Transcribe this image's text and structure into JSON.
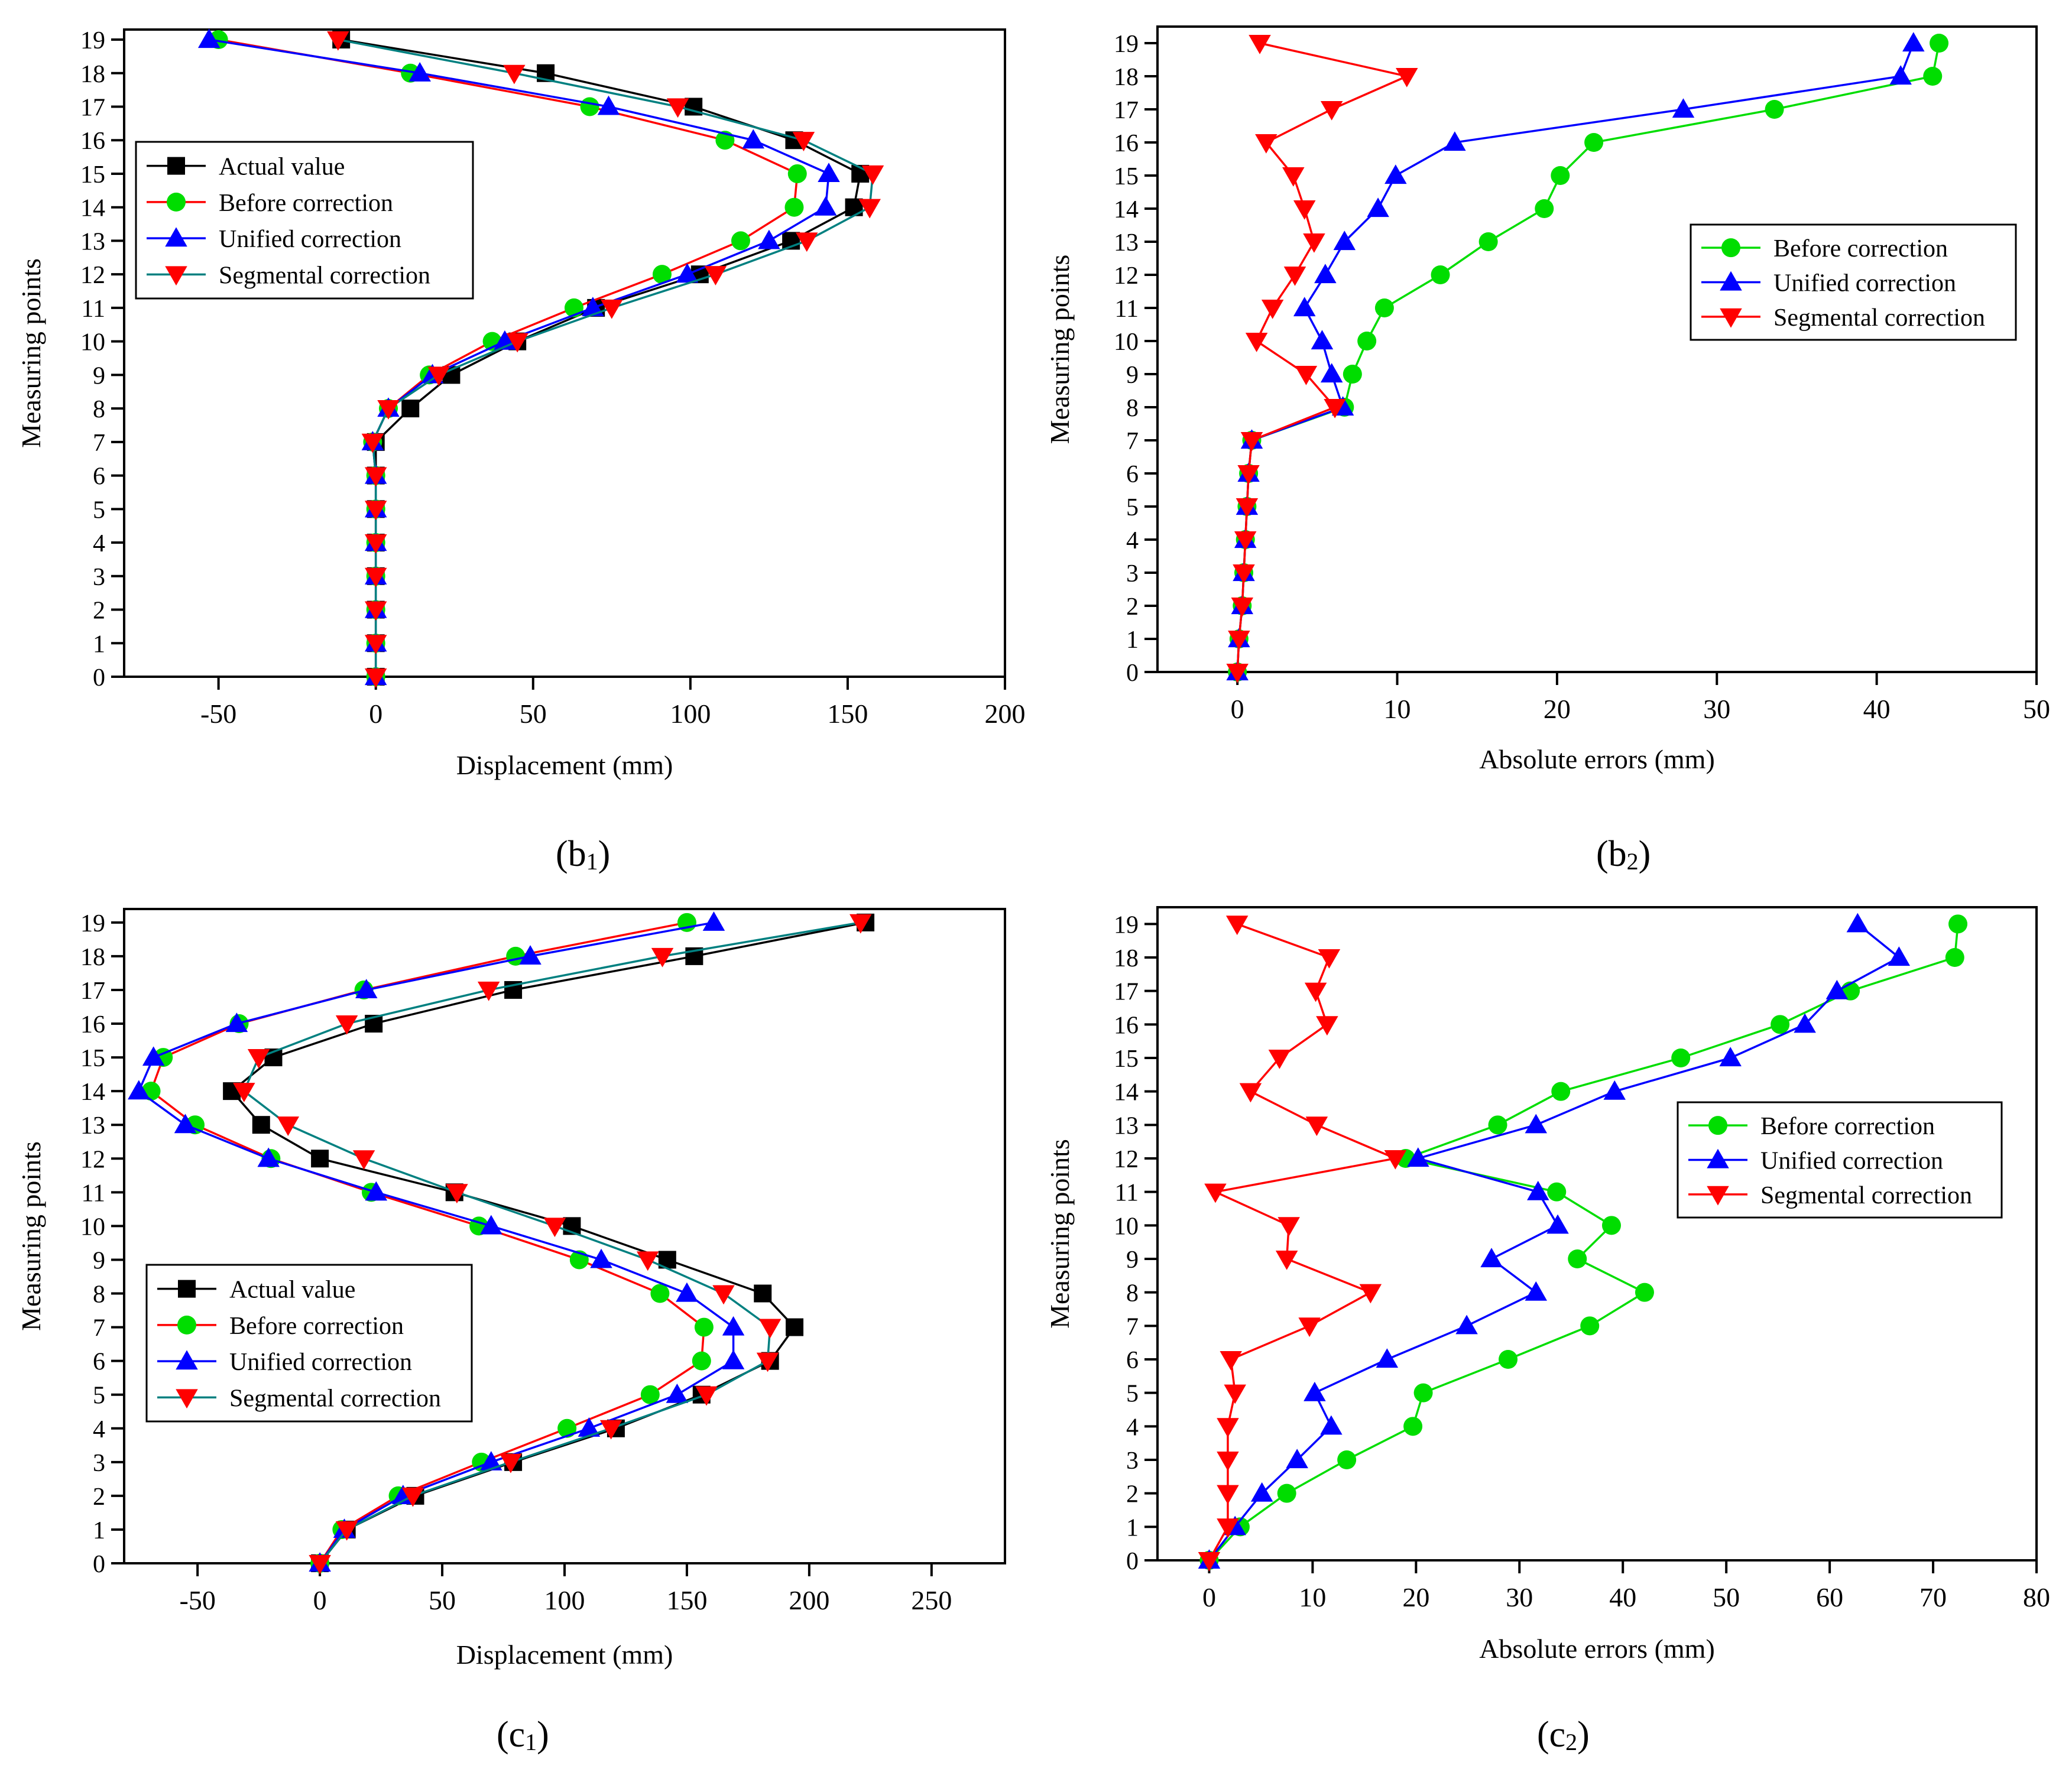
{
  "colors": {
    "actual": "#000000",
    "before": "#00dd00",
    "before_line_b1": "#ff0000",
    "before_line_c1": "#ff0000",
    "unified": "#0000ff",
    "segmental": "#ff0000",
    "segmental_line": "#008080"
  },
  "chart_data": [
    {
      "id": "b1",
      "type": "line",
      "caption_main": "(b",
      "caption_sub": "1",
      "caption_end": ")",
      "xlabel": "Displacement (mm)",
      "ylabel": "Measuring points",
      "xlim": [
        -80,
        200
      ],
      "ylim": [
        0,
        19.3
      ],
      "xticks": [
        -50,
        0,
        50,
        100,
        150,
        200
      ],
      "yticks": [
        0,
        1,
        2,
        3,
        4,
        5,
        6,
        7,
        8,
        9,
        10,
        11,
        12,
        13,
        14,
        15,
        16,
        17,
        18,
        19
      ],
      "legend_position": "upper-left",
      "series": [
        {
          "name": "Actual value",
          "key": "actual",
          "marker": "square",
          "y": [
            0,
            1,
            2,
            3,
            4,
            5,
            6,
            7,
            8,
            9,
            10,
            11,
            12,
            13,
            14,
            15,
            16,
            17,
            18,
            19
          ],
          "x": [
            0,
            0,
            0,
            0,
            0,
            0,
            0,
            0,
            11,
            24,
            45,
            70,
            103,
            132,
            152,
            154,
            133,
            101,
            54,
            -11
          ]
        },
        {
          "name": "Before correction",
          "key": "before",
          "marker": "circle",
          "y": [
            0,
            1,
            2,
            3,
            4,
            5,
            6,
            7,
            8,
            9,
            10,
            11,
            12,
            13,
            14,
            15,
            16,
            17,
            18,
            19
          ],
          "x": [
            0,
            0,
            0,
            0,
            0,
            0,
            0,
            -1,
            4,
            17,
            37,
            63,
            91,
            116,
            133,
            134,
            111,
            68,
            11,
            -50
          ]
        },
        {
          "name": "Unified correction",
          "key": "unified",
          "marker": "triangle-up",
          "y": [
            0,
            1,
            2,
            3,
            4,
            5,
            6,
            7,
            8,
            9,
            10,
            11,
            12,
            13,
            14,
            15,
            16,
            17,
            18,
            19
          ],
          "x": [
            0,
            0,
            0,
            0,
            0,
            0,
            0,
            -1,
            4,
            18,
            41,
            69,
            99,
            125,
            143,
            144,
            120,
            74,
            14,
            -53
          ]
        },
        {
          "name": "Segmental correction",
          "key": "segmental",
          "marker": "triangle-down",
          "y": [
            0,
            1,
            2,
            3,
            4,
            5,
            6,
            7,
            8,
            9,
            10,
            11,
            12,
            13,
            14,
            15,
            16,
            17,
            18,
            19
          ],
          "x": [
            0,
            0,
            0,
            0,
            0,
            0,
            0,
            -1,
            4,
            20,
            45,
            75,
            108,
            137,
            157,
            158,
            136,
            96,
            44,
            -12
          ]
        }
      ]
    },
    {
      "id": "b2",
      "type": "line",
      "caption_main": "(b",
      "caption_sub": "2",
      "caption_end": ")",
      "xlabel": "Absolute  errors (mm)",
      "ylabel": "Measuring points",
      "xlim": [
        -5,
        50
      ],
      "ylim": [
        0,
        19.5
      ],
      "xticks": [
        0,
        10,
        20,
        30,
        40,
        50
      ],
      "yticks": [
        0,
        1,
        2,
        3,
        4,
        5,
        6,
        7,
        8,
        9,
        10,
        11,
        12,
        13,
        14,
        15,
        16,
        17,
        18,
        19
      ],
      "legend_position": "upper-right",
      "series": [
        {
          "name": "Before correction",
          "key": "before",
          "marker": "circle",
          "y": [
            0,
            1,
            2,
            3,
            4,
            5,
            6,
            7,
            8,
            9,
            10,
            11,
            12,
            13,
            14,
            15,
            16,
            17,
            18,
            19
          ],
          "x": [
            0,
            0.1,
            0.3,
            0.4,
            0.5,
            0.6,
            0.7,
            0.9,
            6.7,
            7.2,
            8.1,
            9.2,
            12.7,
            15.7,
            19.2,
            20.2,
            22.3,
            33.6,
            43.5,
            43.9
          ]
        },
        {
          "name": "Unified correction",
          "key": "unified",
          "marker": "triangle-up",
          "y": [
            0,
            1,
            2,
            3,
            4,
            5,
            6,
            7,
            8,
            9,
            10,
            11,
            12,
            13,
            14,
            15,
            16,
            17,
            18,
            19
          ],
          "x": [
            0,
            0.1,
            0.3,
            0.4,
            0.5,
            0.6,
            0.7,
            0.9,
            6.6,
            5.9,
            5.3,
            4.2,
            5.5,
            6.7,
            8.8,
            9.9,
            13.6,
            27.9,
            41.5,
            42.3
          ]
        },
        {
          "name": "Segmental correction",
          "key": "segmental",
          "marker": "triangle-down",
          "y": [
            0,
            1,
            2,
            3,
            4,
            5,
            6,
            7,
            8,
            9,
            10,
            11,
            12,
            13,
            14,
            15,
            16,
            17,
            18,
            19
          ],
          "x": [
            0,
            0.1,
            0.3,
            0.4,
            0.5,
            0.6,
            0.7,
            0.9,
            6.1,
            4.3,
            1.2,
            2.2,
            3.6,
            4.8,
            4.2,
            3.5,
            1.8,
            5.9,
            10.6,
            1.4
          ]
        }
      ]
    },
    {
      "id": "c1",
      "type": "line",
      "caption_main": "(c",
      "caption_sub": "1",
      "caption_end": ")",
      "xlabel": "Displacement (mm)",
      "ylabel": "Measuring points",
      "xlim": [
        -80,
        280
      ],
      "ylim": [
        0,
        19.4
      ],
      "xticks": [
        -50,
        0,
        50,
        100,
        150,
        200,
        250
      ],
      "yticks": [
        0,
        1,
        2,
        3,
        4,
        5,
        6,
        7,
        8,
        9,
        10,
        11,
        12,
        13,
        14,
        15,
        16,
        17,
        18,
        19
      ],
      "legend_position": "lower-left",
      "series": [
        {
          "name": "Actual value",
          "key": "actual",
          "marker": "square",
          "y": [
            0,
            1,
            2,
            3,
            4,
            5,
            6,
            7,
            8,
            9,
            10,
            11,
            12,
            13,
            14,
            15,
            16,
            17,
            18,
            19
          ],
          "x": [
            0,
            11,
            39,
            79,
            121,
            156,
            184,
            194,
            181,
            142,
            103,
            55,
            0,
            -24,
            -36,
            -19,
            22,
            79,
            153,
            223
          ]
        },
        {
          "name": "Before correction",
          "key": "before",
          "marker": "circle",
          "y": [
            0,
            1,
            2,
            3,
            4,
            5,
            6,
            7,
            8,
            9,
            10,
            11,
            12,
            13,
            14,
            15,
            16,
            17,
            18,
            19
          ],
          "x": [
            0,
            9,
            32,
            66,
            101,
            135,
            156,
            157,
            139,
            106,
            65,
            21,
            -20,
            -51,
            -69,
            -64,
            -33,
            18,
            80,
            150
          ]
        },
        {
          "name": "Unified correction",
          "key": "unified",
          "marker": "triangle-up",
          "y": [
            0,
            1,
            2,
            3,
            4,
            5,
            6,
            7,
            8,
            9,
            10,
            11,
            12,
            13,
            14,
            15,
            16,
            17,
            18,
            19
          ],
          "x": [
            0,
            10,
            34,
            70,
            110,
            146,
            169,
            169,
            150,
            115,
            70,
            23,
            -21,
            -55,
            -74,
            -68,
            -34,
            19,
            86,
            161
          ]
        },
        {
          "name": "Segmental correction",
          "key": "segmental",
          "marker": "triangle-down",
          "y": [
            0,
            1,
            2,
            3,
            4,
            5,
            6,
            7,
            8,
            9,
            10,
            11,
            12,
            13,
            14,
            15,
            16,
            17,
            18,
            19
          ],
          "x": [
            0,
            11,
            38,
            78,
            119,
            158,
            183,
            184,
            165,
            134,
            96,
            56,
            18,
            -13,
            -31,
            -25,
            11,
            69,
            140,
            221
          ]
        }
      ]
    },
    {
      "id": "c2",
      "type": "line",
      "caption_main": "(c",
      "caption_sub": "2",
      "caption_end": ")",
      "xlabel": "Absolute  errors (mm)",
      "ylabel": "Measuring points",
      "xlim": [
        -5,
        80
      ],
      "ylim": [
        0,
        19.5
      ],
      "xticks": [
        0,
        10,
        20,
        30,
        40,
        50,
        60,
        70,
        80
      ],
      "yticks": [
        0,
        1,
        2,
        3,
        4,
        5,
        6,
        7,
        8,
        9,
        10,
        11,
        12,
        13,
        14,
        15,
        16,
        17,
        18,
        19
      ],
      "legend_position": "upper-right",
      "series": [
        {
          "name": "Before correction",
          "key": "before",
          "marker": "circle",
          "y": [
            0,
            1,
            2,
            3,
            4,
            5,
            6,
            7,
            8,
            9,
            10,
            11,
            12,
            13,
            14,
            15,
            16,
            17,
            18,
            19
          ],
          "x": [
            0,
            3,
            7.5,
            13.3,
            19.7,
            20.7,
            28.9,
            36.8,
            42.1,
            35.6,
            38.9,
            33.6,
            19,
            27.9,
            34,
            45.6,
            55.2,
            62,
            72.1,
            72.4
          ]
        },
        {
          "name": "Unified correction",
          "key": "unified",
          "marker": "triangle-up",
          "y": [
            0,
            1,
            2,
            3,
            4,
            5,
            6,
            7,
            8,
            9,
            10,
            11,
            12,
            13,
            14,
            15,
            16,
            17,
            18,
            19
          ],
          "x": [
            0,
            2.5,
            5.1,
            8.5,
            11.8,
            10.2,
            17.2,
            24.9,
            31.6,
            27.3,
            33.7,
            31.8,
            20.2,
            31.6,
            39.2,
            50.4,
            57.6,
            60.7,
            66.7,
            62.7
          ]
        },
        {
          "name": "Segmental correction",
          "key": "segmental",
          "marker": "triangle-down",
          "y": [
            0,
            1,
            2,
            3,
            4,
            5,
            6,
            7,
            8,
            9,
            10,
            11,
            12,
            13,
            14,
            15,
            16,
            17,
            18,
            19
          ],
          "x": [
            0,
            1.8,
            1.8,
            1.8,
            1.8,
            2.5,
            2.1,
            9.7,
            15.6,
            7.5,
            7.7,
            0.6,
            18,
            10.4,
            4,
            6.8,
            11.4,
            10.3,
            11.6,
            2.7
          ]
        }
      ]
    }
  ]
}
